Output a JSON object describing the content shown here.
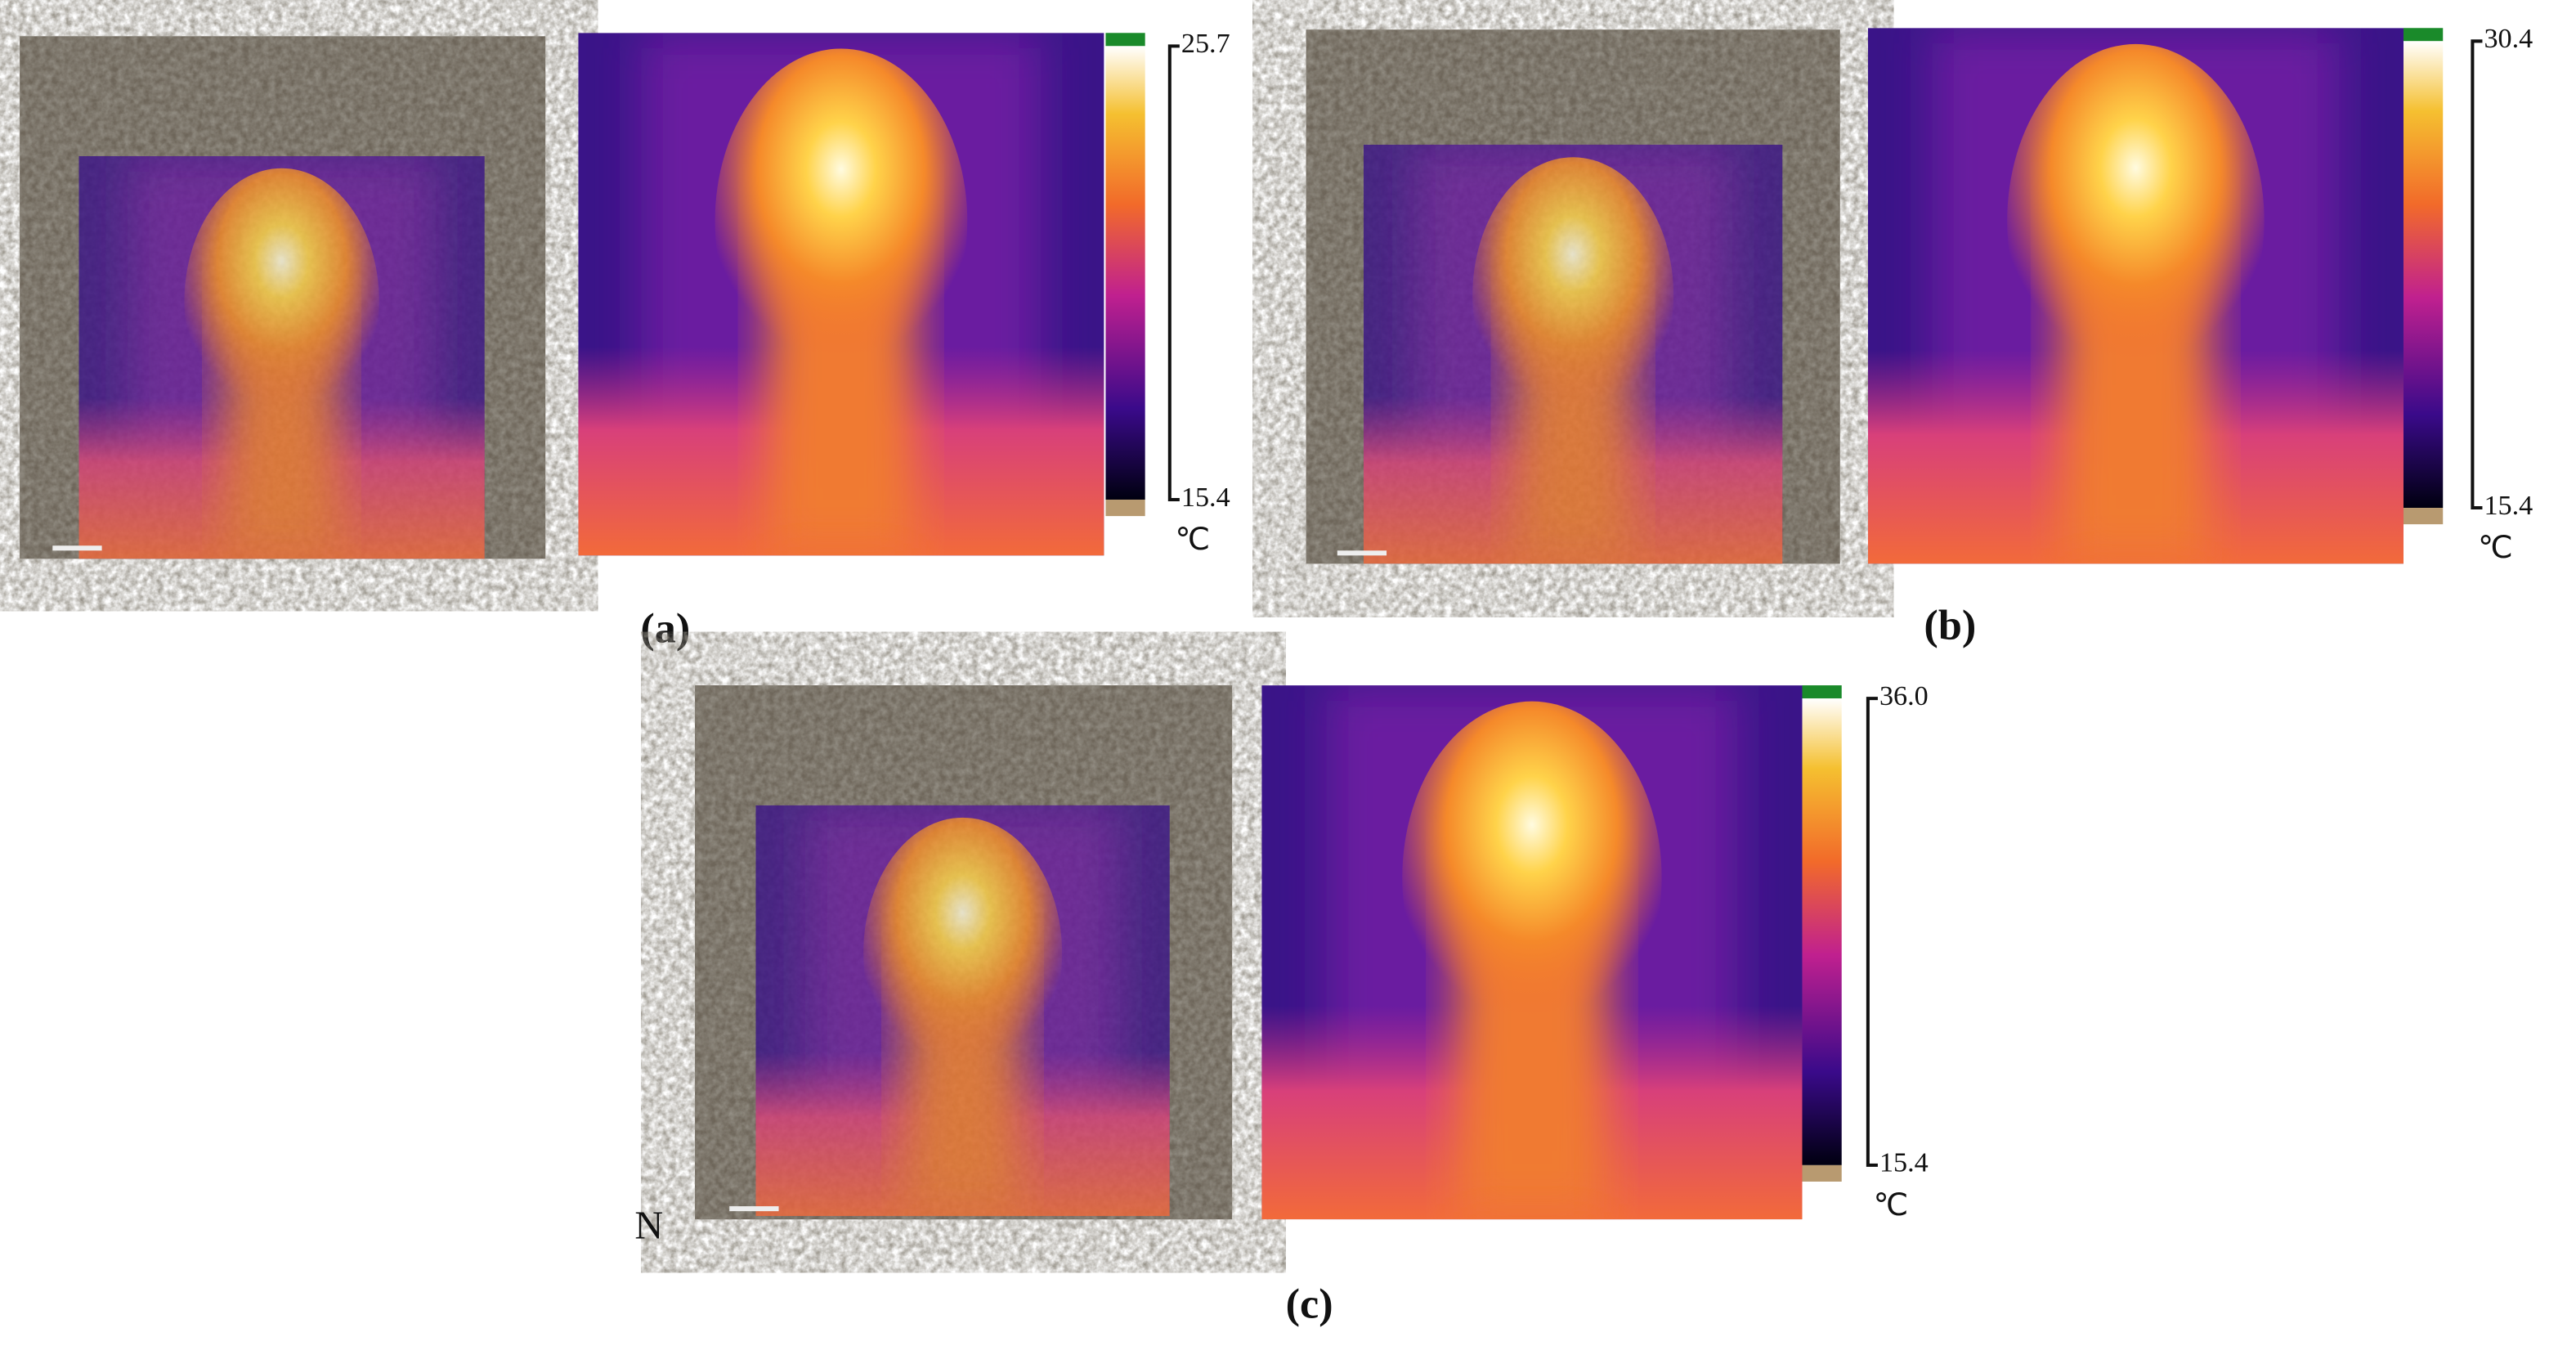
{
  "panels": [
    {
      "label": "(a)",
      "max": "25.7",
      "min": "15.4",
      "unit": "℃"
    },
    {
      "label": "(b)",
      "max": "30.4",
      "min": "15.4",
      "unit": "℃"
    },
    {
      "label": "(c)",
      "max": "36.0",
      "min": "15.4",
      "unit": "℃"
    }
  ],
  "north": "N"
}
